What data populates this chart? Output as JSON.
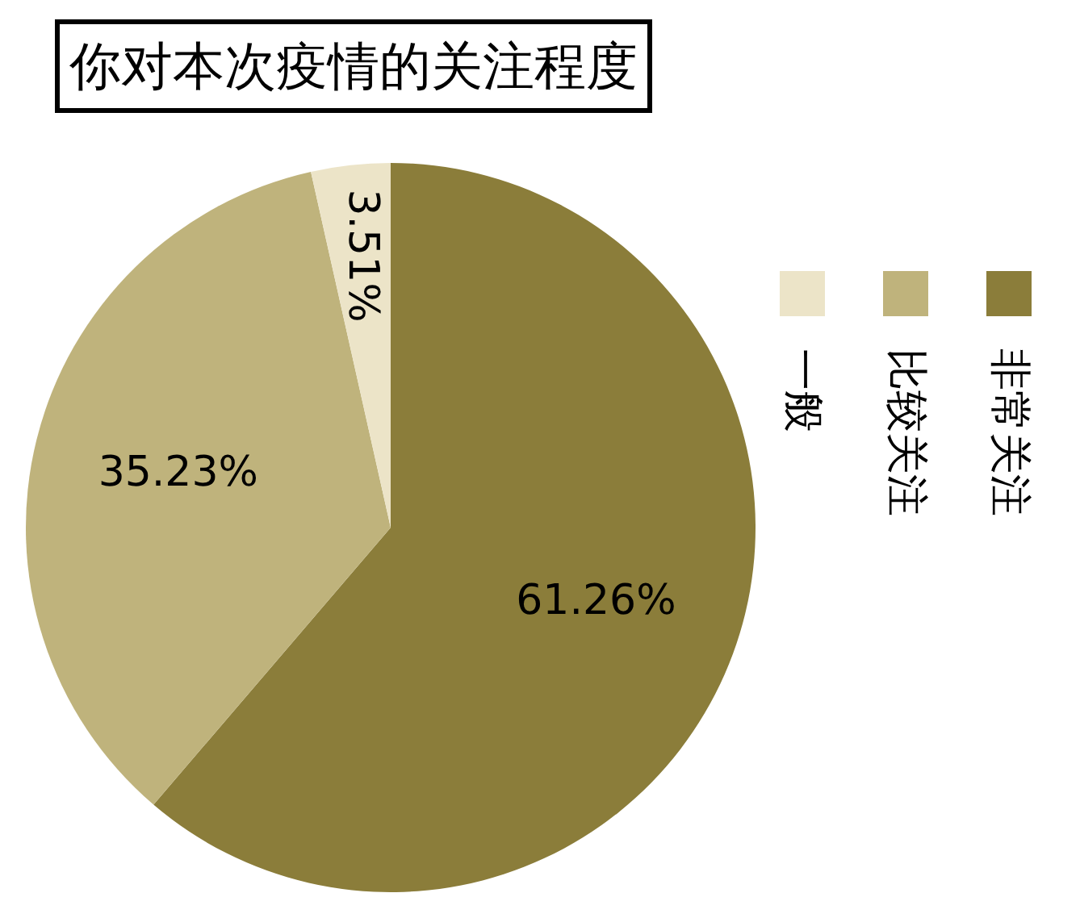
{
  "chart_data": {
    "type": "pie",
    "title": "你对本次疫情的关注程度",
    "categories": [
      "非常关注",
      "比较关注",
      "一般"
    ],
    "values": [
      61.26,
      35.23,
      3.51
    ],
    "colors": [
      "#8b7d3a",
      "#bfb37c",
      "#ece4c8"
    ],
    "value_labels": [
      "61.26%",
      "35.23%",
      "3.51%"
    ],
    "legend": "right"
  }
}
